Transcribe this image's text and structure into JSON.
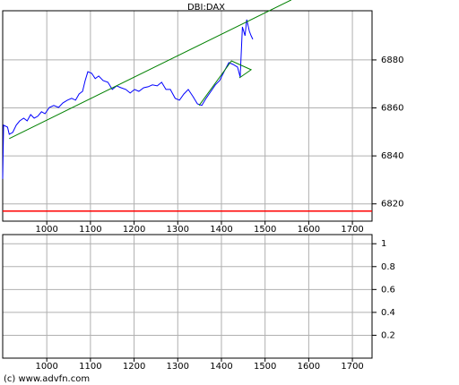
{
  "chart_data": [
    {
      "type": "line",
      "title": "DBI:DAX",
      "x": [
        899,
        901,
        910,
        914,
        922,
        930,
        938,
        947,
        955,
        963,
        971,
        979,
        988,
        996,
        1006,
        1016,
        1027,
        1037,
        1047,
        1057,
        1066,
        1074,
        1082,
        1088,
        1094,
        1103,
        1111,
        1119,
        1129,
        1140,
        1150,
        1160,
        1170,
        1181,
        1191,
        1201,
        1211,
        1222,
        1232,
        1242,
        1253,
        1263,
        1273,
        1283,
        1294,
        1304,
        1314,
        1324,
        1335,
        1345,
        1355,
        1365,
        1376,
        1386,
        1396,
        1406,
        1417,
        1427,
        1437,
        1443,
        1448,
        1454,
        1458,
        1464,
        1468,
        1472
      ],
      "series": [
        {
          "color": "#0000ff",
          "values": [
            6830.4,
            6852.8,
            6852,
            6849,
            6849.8,
            6852.8,
            6854.6,
            6855.7,
            6854.6,
            6857.2,
            6855.7,
            6856.5,
            6858.4,
            6857.6,
            6860.2,
            6861,
            6860.2,
            6862.1,
            6863.2,
            6864,
            6863.2,
            6865.8,
            6866.9,
            6871.4,
            6875.1,
            6874.4,
            6872.2,
            6873.3,
            6871.4,
            6870.7,
            6867.7,
            6869.2,
            6868.4,
            6867.7,
            6866.2,
            6867.7,
            6866.9,
            6868.4,
            6868.8,
            6869.6,
            6869.2,
            6870.7,
            6867.7,
            6867.7,
            6864,
            6863.2,
            6865.8,
            6867.7,
            6864.7,
            6861.7,
            6861,
            6864,
            6866.9,
            6869.6,
            6871.4,
            6875.1,
            6878.9,
            6878.1,
            6877,
            6872.9,
            6893.8,
            6890.1,
            6896.8,
            6891.9,
            6890.1,
            6888.6
          ]
        }
      ],
      "trendlines": [
        {
          "color": "#008000",
          "x": [
            914,
            1560
          ],
          "y": [
            6847.2,
            6905
          ]
        },
        {
          "color": "#008000",
          "x": [
            1349,
            1423,
            1468,
            1441
          ],
          "y": [
            6861,
            6879.6,
            6875.9,
            6872.5
          ]
        }
      ],
      "hlines": [
        {
          "color": "#ff0000",
          "y": 6817
        }
      ],
      "xlim": [
        899,
        1745
      ],
      "xticks": [
        1000,
        1100,
        1200,
        1300,
        1400,
        1500,
        1600,
        1700
      ],
      "ylim": [
        6812.8,
        6900.5
      ],
      "yticks": [
        6820,
        6840,
        6860,
        6880
      ],
      "grid": true
    },
    {
      "type": "line",
      "series": [],
      "xlim": [
        899,
        1745
      ],
      "xticks": [
        1000,
        1100,
        1200,
        1300,
        1400,
        1500,
        1600,
        1700
      ],
      "ylim": [
        0,
        1.08
      ],
      "yticks": [
        0.2,
        0.4,
        0.6,
        0.8,
        1
      ],
      "grid": true
    }
  ],
  "footer": "(c) www.advfn.com"
}
